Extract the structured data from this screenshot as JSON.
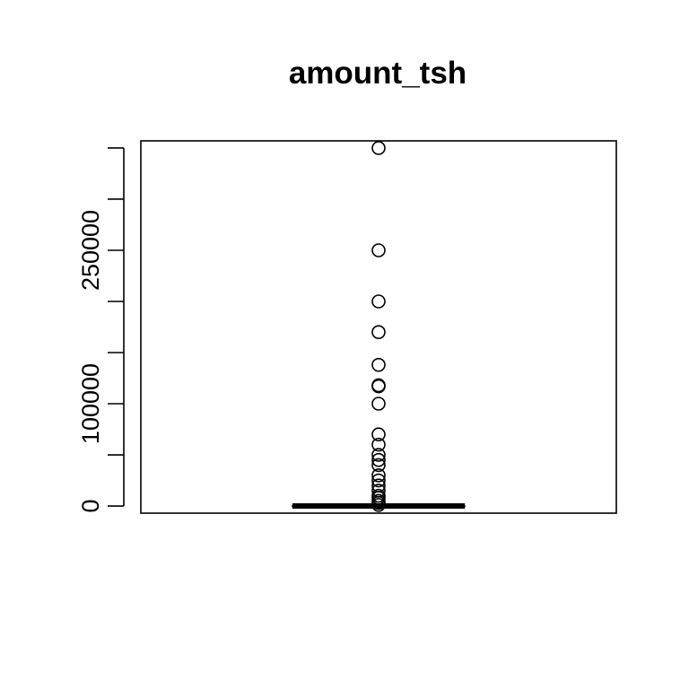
{
  "chart_data": {
    "type": "boxplot",
    "title": "amount_tsh",
    "xlabel": "",
    "ylabel": "",
    "ylim": [
      -7000,
      357000
    ],
    "y_ticks": [
      0,
      50000,
      100000,
      150000,
      200000,
      250000,
      300000,
      350000
    ],
    "y_tick_labels": [
      "0",
      "",
      "100000",
      "",
      "",
      "250000",
      "",
      ""
    ],
    "grid": false,
    "box": {
      "min": 0,
      "q1": 0,
      "median": 0,
      "q3": 20,
      "max": 50
    },
    "outliers": [
      350000,
      250000,
      200000,
      170000,
      138000,
      118000,
      117000,
      100000,
      70000,
      60000,
      50000,
      45000,
      40000,
      30000,
      25000,
      20000,
      15000,
      10000,
      8000,
      5000,
      3000,
      1000
    ]
  }
}
